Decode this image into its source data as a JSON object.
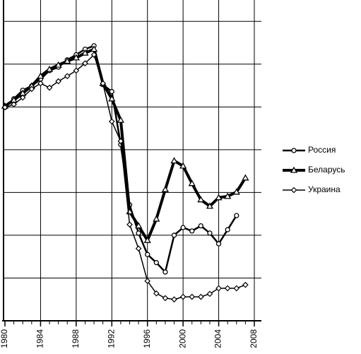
{
  "chart_data": {
    "type": "line",
    "x": [
      1980,
      1981,
      1982,
      1983,
      1984,
      1985,
      1986,
      1987,
      1988,
      1989,
      1990,
      1991,
      1992,
      1993,
      1994,
      1995,
      1996,
      1997,
      1998,
      1999,
      2000,
      2001,
      2002,
      2003,
      2004,
      2005,
      2006,
      2007
    ],
    "xlim": [
      1980,
      2008
    ],
    "xticks": [
      1980,
      1984,
      1988,
      1992,
      1996,
      2000,
      2004,
      2008
    ],
    "ylim": [
      0,
      7.5
    ],
    "yticks": [
      1,
      2,
      3,
      4,
      5,
      6,
      7
    ],
    "grid": true,
    "legend": "right",
    "series": [
      {
        "name": "Россия",
        "color": "#000000",
        "marker": "circle",
        "values": [
          4.99,
          5.19,
          5.39,
          5.49,
          5.65,
          5.85,
          5.93,
          6.1,
          6.22,
          6.35,
          6.43,
          5.52,
          5.36,
          4.12,
          2.71,
          2.05,
          1.55,
          1.36,
          1.14,
          2.0,
          2.18,
          2.1,
          2.22,
          2.05,
          1.8,
          2.13,
          2.46,
          null
        ]
      },
      {
        "name": "Беларусь",
        "color": "#000000",
        "marker": "triangle",
        "values": [
          5.02,
          5.16,
          5.32,
          5.49,
          5.72,
          5.88,
          5.98,
          6.07,
          6.15,
          6.26,
          6.35,
          5.55,
          5.19,
          4.69,
          2.55,
          2.22,
          1.88,
          2.38,
          3.07,
          3.74,
          3.62,
          3.21,
          2.83,
          2.68,
          2.88,
          2.91,
          3.01,
          3.34
        ]
      },
      {
        "name": "Украина",
        "color": "#000000",
        "marker": "diamond",
        "values": [
          4.99,
          5.06,
          5.22,
          5.42,
          5.55,
          5.45,
          5.6,
          5.72,
          5.85,
          6.02,
          6.22,
          5.55,
          4.66,
          4.2,
          2.25,
          1.69,
          0.93,
          0.64,
          0.53,
          0.5,
          0.56,
          0.56,
          0.56,
          0.63,
          0.76,
          0.76,
          0.76,
          0.84
        ]
      }
    ]
  }
}
